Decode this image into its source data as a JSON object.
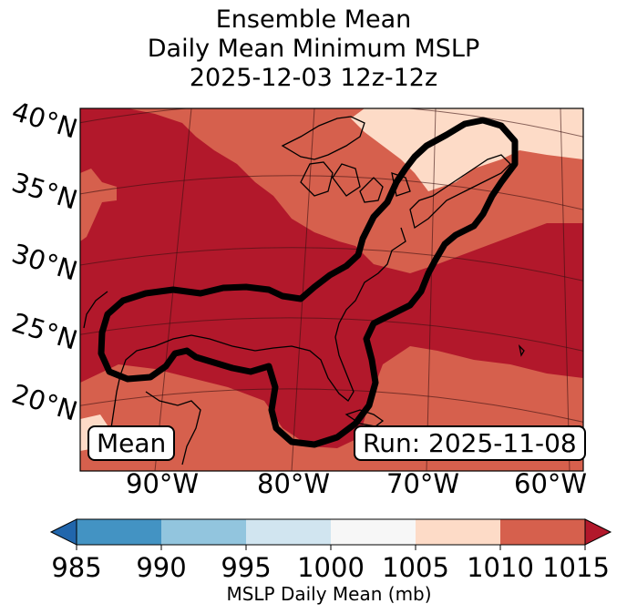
{
  "title": {
    "line1": "Ensemble Mean",
    "line2": "Daily Mean Minimum MSLP",
    "line3": "2025-12-03 12z-12z"
  },
  "map": {
    "lat_labels": [
      "40°N",
      "35°N",
      "30°N",
      "25°N",
      "20°N"
    ],
    "lon_labels": [
      "90°W",
      "80°W",
      "70°W",
      "60°W"
    ],
    "left_box": "Mean",
    "right_box": "Run: 2025-11-08"
  },
  "colorbar": {
    "ticks": [
      "985",
      "990",
      "995",
      "1000",
      "1005",
      "1010",
      "1015"
    ],
    "label": "MSLP Daily Mean (mb)",
    "colors": {
      "below_985": "#2166ac",
      "985_990": "#4393c3",
      "990_995": "#92c5de",
      "995_1000": "#d1e5f0",
      "1000_1005": "#f7f7f7",
      "1005_1010": "#fddbc7",
      "1010_1015": "#d6604d",
      "above_1015": "#b2182b"
    }
  }
}
